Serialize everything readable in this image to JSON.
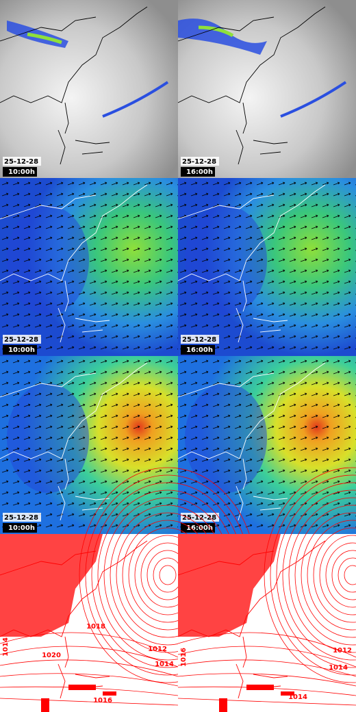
{
  "panels": [
    {
      "date": "25-12-28",
      "time": "10:00h"
    },
    {
      "date": "25-12-28",
      "time": "16:00h"
    },
    {
      "date": "25-12-28",
      "time": "10:00h"
    },
    {
      "date": "25-12-28",
      "time": "16:00h"
    },
    {
      "date": "25-12-28",
      "time": "10:00h"
    },
    {
      "date": "25-12-28",
      "time": "16:00h"
    }
  ],
  "pressure": {
    "left": [
      "1018",
      "1012",
      "1014",
      "1020",
      "1016",
      "1014"
    ],
    "right": [
      "1014",
      "1014",
      "1016",
      "1012"
    ]
  }
}
